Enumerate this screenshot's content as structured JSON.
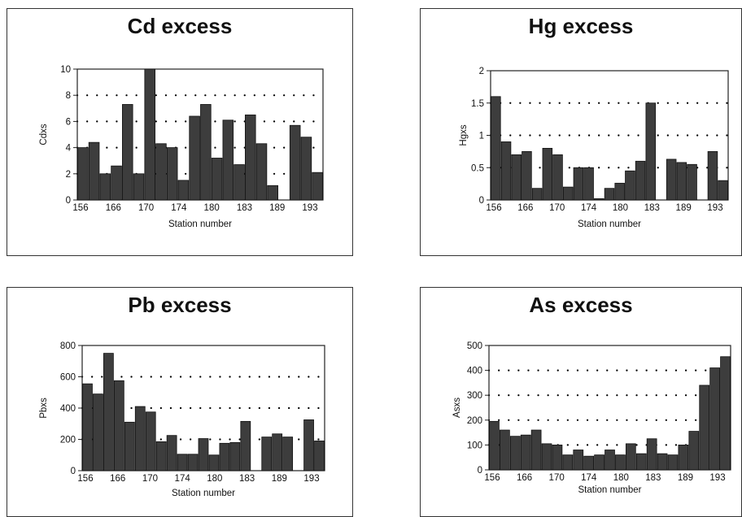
{
  "chart_data": [
    {
      "type": "bar",
      "title": "Cd excess",
      "xlabel": "Station number",
      "ylabel": "Cdxs",
      "ylim": [
        0,
        10
      ],
      "yticks": [
        "0",
        "2",
        "4",
        "6",
        "8",
        "10"
      ],
      "xticks": [
        "156",
        "166",
        "170",
        "174",
        "180",
        "183",
        "189",
        "193"
      ],
      "grid": "dotted horizontal",
      "values": [
        4.0,
        4.4,
        2.0,
        2.6,
        7.3,
        2.0,
        10.0,
        4.3,
        4.0,
        1.5,
        6.4,
        7.3,
        3.2,
        6.1,
        2.7,
        6.5,
        4.3,
        1.1,
        null,
        5.7,
        4.8,
        2.1
      ]
    },
    {
      "type": "bar",
      "title": "Hg excess",
      "xlabel": "Station number",
      "ylabel": "Hgxs",
      "ylim": [
        0,
        2
      ],
      "yticks": [
        "0",
        "0.5",
        "1",
        "1.5",
        "2"
      ],
      "xticks": [
        "156",
        "166",
        "170",
        "174",
        "180",
        "183",
        "189",
        "193"
      ],
      "grid": "dotted horizontal",
      "values": [
        1.6,
        0.9,
        0.7,
        0.75,
        0.18,
        0.8,
        0.7,
        0.2,
        0.5,
        0.5,
        0.02,
        0.18,
        0.26,
        0.45,
        0.6,
        1.5,
        null,
        0.63,
        0.58,
        0.55,
        null,
        0.75,
        0.3
      ]
    },
    {
      "type": "bar",
      "title": "Pb excess",
      "xlabel": "Station number",
      "ylabel": "Pbxs",
      "ylim": [
        0,
        800
      ],
      "yticks": [
        "0",
        "200",
        "400",
        "600",
        "800"
      ],
      "xticks": [
        "156",
        "166",
        "170",
        "174",
        "180",
        "183",
        "189",
        "193"
      ],
      "grid": "dotted horizontal",
      "values": [
        555,
        490,
        750,
        575,
        310,
        410,
        375,
        185,
        225,
        105,
        105,
        205,
        100,
        175,
        180,
        315,
        null,
        215,
        235,
        215,
        null,
        325,
        190
      ]
    },
    {
      "type": "bar",
      "title": "As excess",
      "xlabel": "Station number",
      "ylabel": "Asxs",
      "ylim": [
        0,
        500
      ],
      "yticks": [
        "0",
        "100",
        "200",
        "300",
        "400",
        "500"
      ],
      "xticks": [
        "156",
        "166",
        "170",
        "174",
        "180",
        "183",
        "189",
        "193"
      ],
      "grid": "dotted horizontal",
      "values": [
        195,
        160,
        135,
        140,
        160,
        105,
        100,
        60,
        80,
        55,
        60,
        80,
        60,
        105,
        65,
        125,
        65,
        60,
        100,
        155,
        340,
        410,
        455
      ]
    }
  ]
}
